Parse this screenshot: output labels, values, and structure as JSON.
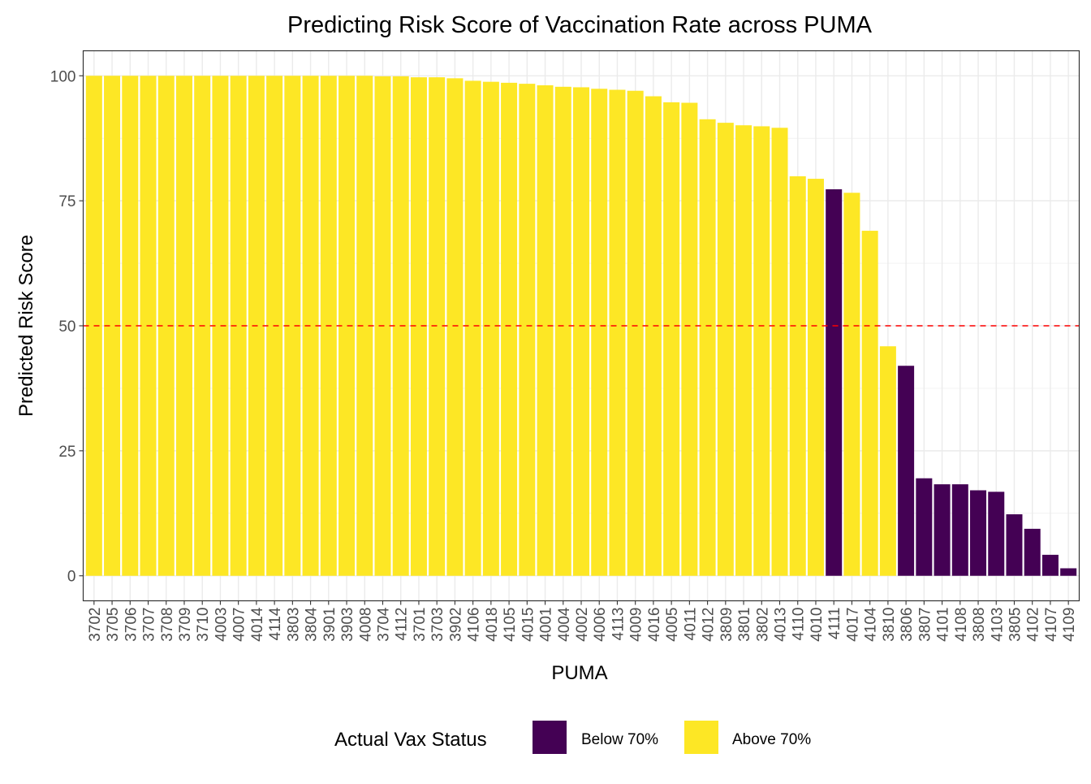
{
  "chart_data": {
    "type": "bar",
    "title": "Predicting Risk Score of Vaccination Rate across PUMA",
    "xlabel": "PUMA",
    "ylabel": "Predicted Risk Score",
    "ylim": [
      -5,
      105
    ],
    "yticks": [
      0,
      25,
      50,
      75,
      100
    ],
    "grid": true,
    "threshold_line": {
      "value": 50,
      "color": "#ff0000",
      "style": "dashed"
    },
    "legend": {
      "title": "Actual Vax Status",
      "position": "bottom",
      "entries": [
        {
          "key": "below",
          "label": "Below 70%",
          "color": "#440154"
        },
        {
          "key": "above",
          "label": "Above 70%",
          "color": "#fde725"
        }
      ]
    },
    "categories": [
      "3702",
      "3705",
      "3706",
      "3707",
      "3708",
      "3709",
      "3710",
      "4003",
      "4007",
      "4014",
      "4114",
      "3803",
      "3804",
      "3901",
      "3903",
      "4008",
      "3704",
      "4112",
      "3701",
      "3703",
      "3902",
      "4106",
      "4018",
      "4105",
      "4015",
      "4001",
      "4004",
      "4002",
      "4006",
      "4113",
      "4009",
      "4016",
      "4005",
      "4011",
      "4012",
      "3809",
      "3801",
      "3802",
      "4013",
      "4110",
      "4010",
      "4111",
      "4017",
      "4104",
      "3810",
      "3806",
      "3807",
      "4101",
      "4108",
      "3808",
      "4103",
      "3805",
      "4102",
      "4107",
      "4109"
    ],
    "values": [
      100,
      100,
      100,
      100,
      100,
      100,
      100,
      100,
      100,
      100,
      100,
      100,
      100,
      100,
      100,
      100,
      99.9,
      99.9,
      99.7,
      99.7,
      99.5,
      99.0,
      98.8,
      98.6,
      98.4,
      98.1,
      97.8,
      97.7,
      97.4,
      97.2,
      97.0,
      95.9,
      94.7,
      94.6,
      91.3,
      90.6,
      90.1,
      89.9,
      89.6,
      79.9,
      79.4,
      77.3,
      76.6,
      69.0,
      45.9,
      42.0,
      19.5,
      18.3,
      18.3,
      17.1,
      16.8,
      12.3,
      9.4,
      4.2,
      1.5
    ],
    "status": [
      "above",
      "above",
      "above",
      "above",
      "above",
      "above",
      "above",
      "above",
      "above",
      "above",
      "above",
      "above",
      "above",
      "above",
      "above",
      "above",
      "above",
      "above",
      "above",
      "above",
      "above",
      "above",
      "above",
      "above",
      "above",
      "above",
      "above",
      "above",
      "above",
      "above",
      "above",
      "above",
      "above",
      "above",
      "above",
      "above",
      "above",
      "above",
      "above",
      "above",
      "above",
      "below",
      "above",
      "above",
      "above",
      "below",
      "below",
      "below",
      "below",
      "below",
      "below",
      "below",
      "below",
      "below",
      "below"
    ]
  }
}
